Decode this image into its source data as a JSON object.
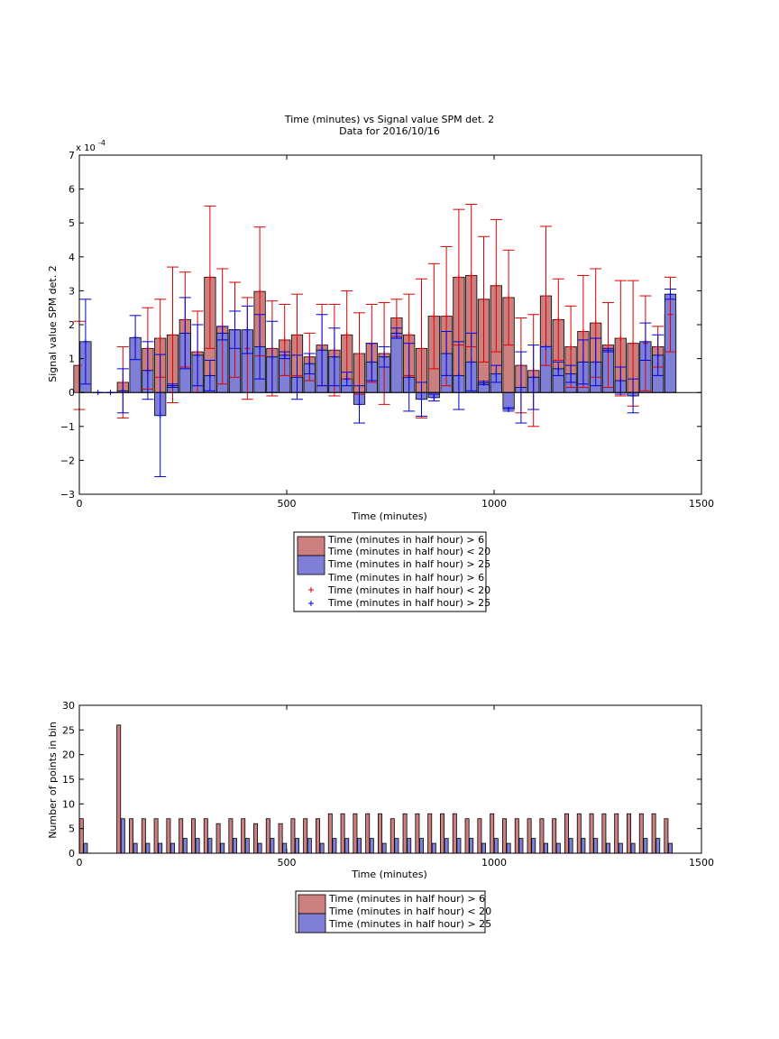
{
  "colors": {
    "red_bar": "#cc7f7f",
    "blue_bar": "#7f7fd7",
    "red_err": "#e00000",
    "blue_err": "#0000dd"
  },
  "chart_data": [
    {
      "type": "bar",
      "title": "Time (minutes) vs Signal value SPM det. 2",
      "subtitle": "Data for 2016/10/16",
      "xlabel": "Time (minutes)",
      "ylabel": "Signal value SPM det. 2",
      "y_exponent_label": "x 10",
      "y_exponent": "-4",
      "xlim": [
        0,
        1500
      ],
      "ylim": [
        -3,
        7
      ],
      "xticks": [
        "0",
        "500",
        "1000",
        "1500"
      ],
      "yticks": [
        "−3",
        "−2",
        "−1",
        "0",
        "1",
        "2",
        "3",
        "4",
        "5",
        "6",
        "7"
      ],
      "bar_width_minutes": 27,
      "legend": [
        "Time (minutes in half hour) > 6",
        "Time (minutes in half hour) < 20",
        "Time (minutes in half hour) > 25",
        "Time (minutes in half hour) > 6",
        "Time (minutes in half hour) < 20",
        "Time (minutes in half hour) > 25"
      ],
      "legend_location": "below the axes",
      "red_series": [
        {
          "x": 0,
          "v": 0.8,
          "err": 1.3
        },
        {
          "x": 105,
          "v": 0.3,
          "err": 1.05
        },
        {
          "x": 165,
          "v": 1.3,
          "err": 1.2
        },
        {
          "x": 195,
          "v": 1.6,
          "err": 1.15
        },
        {
          "x": 225,
          "v": 1.7,
          "err": 2.0
        },
        {
          "x": 255,
          "v": 2.15,
          "err": 1.4
        },
        {
          "x": 285,
          "v": 1.2,
          "err": 1.2
        },
        {
          "x": 315,
          "v": 3.4,
          "err": 2.1
        },
        {
          "x": 345,
          "v": 1.95,
          "err": 1.7
        },
        {
          "x": 375,
          "v": 1.85,
          "err": 1.4
        },
        {
          "x": 405,
          "v": 1.3,
          "err": 1.5
        },
        {
          "x": 435,
          "v": 2.98,
          "err": 1.9
        },
        {
          "x": 465,
          "v": 1.3,
          "err": 1.4
        },
        {
          "x": 495,
          "v": 1.55,
          "err": 1.05
        },
        {
          "x": 525,
          "v": 1.7,
          "err": 1.2
        },
        {
          "x": 555,
          "v": 1.05,
          "err": 0.7
        },
        {
          "x": 585,
          "v": 1.4,
          "err": 1.2
        },
        {
          "x": 615,
          "v": 1.25,
          "err": 1.35
        },
        {
          "x": 645,
          "v": 1.7,
          "err": 1.3
        },
        {
          "x": 675,
          "v": 1.15,
          "err": 1.2
        },
        {
          "x": 705,
          "v": 1.45,
          "err": 1.15
        },
        {
          "x": 735,
          "v": 1.15,
          "err": 1.5
        },
        {
          "x": 765,
          "v": 2.2,
          "err": 0.55
        },
        {
          "x": 795,
          "v": 1.7,
          "err": 1.2
        },
        {
          "x": 825,
          "v": 1.3,
          "err": 2.05
        },
        {
          "x": 855,
          "v": 2.25,
          "err": 1.55
        },
        {
          "x": 885,
          "v": 2.25,
          "err": 2.05
        },
        {
          "x": 915,
          "v": 3.4,
          "err": 2.0
        },
        {
          "x": 945,
          "v": 3.45,
          "err": 2.1
        },
        {
          "x": 975,
          "v": 2.75,
          "err": 1.85
        },
        {
          "x": 1005,
          "v": 3.15,
          "err": 1.95
        },
        {
          "x": 1035,
          "v": 2.8,
          "err": 1.4
        },
        {
          "x": 1065,
          "v": 0.8,
          "err": 1.4
        },
        {
          "x": 1095,
          "v": 0.65,
          "err": 1.65
        },
        {
          "x": 1125,
          "v": 2.85,
          "err": 2.05
        },
        {
          "x": 1155,
          "v": 2.15,
          "err": 1.2
        },
        {
          "x": 1185,
          "v": 1.35,
          "err": 1.2
        },
        {
          "x": 1215,
          "v": 1.8,
          "err": 1.65
        },
        {
          "x": 1245,
          "v": 2.05,
          "err": 1.6
        },
        {
          "x": 1275,
          "v": 1.4,
          "err": 1.25
        },
        {
          "x": 1305,
          "v": 1.6,
          "err": 1.7
        },
        {
          "x": 1335,
          "v": 1.45,
          "err": 1.85
        },
        {
          "x": 1365,
          "v": 1.45,
          "err": 1.4
        },
        {
          "x": 1395,
          "v": 1.35,
          "err": 0.6
        },
        {
          "x": 1425,
          "v": 2.3,
          "err": 1.1
        }
      ],
      "blue_series": [
        {
          "x": 15,
          "v": 1.5,
          "err": 1.25
        },
        {
          "x": 45,
          "v": 0.0,
          "err": 0.0
        },
        {
          "x": 75,
          "v": 0.0,
          "err": 0.0
        },
        {
          "x": 105,
          "v": 0.05,
          "err": 0.65
        },
        {
          "x": 135,
          "v": 1.62,
          "err": 0.65
        },
        {
          "x": 165,
          "v": 0.65,
          "err": 0.85
        },
        {
          "x": 195,
          "v": -0.68,
          "err": 1.8
        },
        {
          "x": 225,
          "v": 0.2,
          "err": 0.05
        },
        {
          "x": 255,
          "v": 1.75,
          "err": 1.05
        },
        {
          "x": 285,
          "v": 1.1,
          "err": 0.9
        },
        {
          "x": 315,
          "v": 0.5,
          "err": 0.45
        },
        {
          "x": 345,
          "v": 1.75,
          "err": 0.2
        },
        {
          "x": 375,
          "v": 1.85,
          "err": 0.55
        },
        {
          "x": 405,
          "v": 1.85,
          "err": 0.7
        },
        {
          "x": 435,
          "v": 1.35,
          "err": 0.95
        },
        {
          "x": 465,
          "v": 1.05,
          "err": 1.05
        },
        {
          "x": 495,
          "v": 1.1,
          "err": 0.1
        },
        {
          "x": 525,
          "v": 0.45,
          "err": 0.65
        },
        {
          "x": 555,
          "v": 0.85,
          "err": 0.3
        },
        {
          "x": 585,
          "v": 1.25,
          "err": 1.05
        },
        {
          "x": 615,
          "v": 1.05,
          "err": 0.85
        },
        {
          "x": 645,
          "v": 0.4,
          "err": 0.2
        },
        {
          "x": 675,
          "v": -0.35,
          "err": 0.55
        },
        {
          "x": 705,
          "v": 0.9,
          "err": 0.55
        },
        {
          "x": 735,
          "v": 1.05,
          "err": 0.3
        },
        {
          "x": 765,
          "v": 1.75,
          "err": 0.15
        },
        {
          "x": 795,
          "v": 0.45,
          "err": 1.0
        },
        {
          "x": 825,
          "v": -0.2,
          "err": 0.5
        },
        {
          "x": 855,
          "v": -0.15,
          "err": 0.1
        },
        {
          "x": 885,
          "v": 1.15,
          "err": 0.65
        },
        {
          "x": 915,
          "v": 0.5,
          "err": 1.0
        },
        {
          "x": 945,
          "v": 0.9,
          "err": 0.85
        },
        {
          "x": 975,
          "v": 0.28,
          "err": 0.05
        },
        {
          "x": 1005,
          "v": 0.55,
          "err": 0.25
        },
        {
          "x": 1035,
          "v": -0.5,
          "err": 0.05
        },
        {
          "x": 1065,
          "v": 0.15,
          "err": 1.05
        },
        {
          "x": 1095,
          "v": 0.45,
          "err": 0.95
        },
        {
          "x": 1125,
          "v": 1.35,
          "err": 0.0
        },
        {
          "x": 1155,
          "v": 0.7,
          "err": 0.2
        },
        {
          "x": 1185,
          "v": 0.55,
          "err": 0.25
        },
        {
          "x": 1215,
          "v": 0.9,
          "err": 0.65
        },
        {
          "x": 1245,
          "v": 0.9,
          "err": 0.7
        },
        {
          "x": 1275,
          "v": 1.25,
          "err": 0.05
        },
        {
          "x": 1305,
          "v": 0.35,
          "err": 0.4
        },
        {
          "x": 1335,
          "v": -0.1,
          "err": 0.5
        },
        {
          "x": 1365,
          "v": 1.5,
          "err": 0.55
        },
        {
          "x": 1395,
          "v": 1.1,
          "err": 0.6
        },
        {
          "x": 1425,
          "v": 2.9,
          "err": 0.15
        }
      ]
    },
    {
      "type": "bar",
      "xlabel": "Time (minutes)",
      "ylabel": "Number of points in bin",
      "xlim": [
        0,
        1500
      ],
      "ylim": [
        0,
        30
      ],
      "xticks": [
        "0",
        "500",
        "1000",
        "1500"
      ],
      "yticks": [
        "0",
        "5",
        "10",
        "15",
        "20",
        "25",
        "30"
      ],
      "bar_width_minutes": 9,
      "legend": [
        "Time (minutes in half hour) > 6",
        "Time (minutes in half hour) < 20",
        "Time (minutes in half hour) > 25"
      ],
      "legend_location": "below the axes",
      "red_counts": [
        {
          "x": 5,
          "v": 7
        },
        {
          "x": 95,
          "v": 26
        },
        {
          "x": 125,
          "v": 7
        },
        {
          "x": 155,
          "v": 7
        },
        {
          "x": 185,
          "v": 7
        },
        {
          "x": 215,
          "v": 7
        },
        {
          "x": 245,
          "v": 7
        },
        {
          "x": 275,
          "v": 7
        },
        {
          "x": 305,
          "v": 7
        },
        {
          "x": 335,
          "v": 6
        },
        {
          "x": 365,
          "v": 7
        },
        {
          "x": 395,
          "v": 7
        },
        {
          "x": 425,
          "v": 6
        },
        {
          "x": 455,
          "v": 7
        },
        {
          "x": 485,
          "v": 6
        },
        {
          "x": 515,
          "v": 7
        },
        {
          "x": 545,
          "v": 7
        },
        {
          "x": 575,
          "v": 7
        },
        {
          "x": 605,
          "v": 8
        },
        {
          "x": 635,
          "v": 8
        },
        {
          "x": 665,
          "v": 8
        },
        {
          "x": 695,
          "v": 8
        },
        {
          "x": 725,
          "v": 8
        },
        {
          "x": 755,
          "v": 7
        },
        {
          "x": 785,
          "v": 8
        },
        {
          "x": 815,
          "v": 8
        },
        {
          "x": 845,
          "v": 8
        },
        {
          "x": 875,
          "v": 8
        },
        {
          "x": 905,
          "v": 8
        },
        {
          "x": 935,
          "v": 7
        },
        {
          "x": 965,
          "v": 7
        },
        {
          "x": 995,
          "v": 8
        },
        {
          "x": 1025,
          "v": 7
        },
        {
          "x": 1055,
          "v": 7
        },
        {
          "x": 1085,
          "v": 7
        },
        {
          "x": 1115,
          "v": 7
        },
        {
          "x": 1145,
          "v": 7
        },
        {
          "x": 1175,
          "v": 8
        },
        {
          "x": 1205,
          "v": 8
        },
        {
          "x": 1235,
          "v": 8
        },
        {
          "x": 1265,
          "v": 8
        },
        {
          "x": 1295,
          "v": 8
        },
        {
          "x": 1325,
          "v": 8
        },
        {
          "x": 1355,
          "v": 8
        },
        {
          "x": 1385,
          "v": 8
        },
        {
          "x": 1415,
          "v": 7
        }
      ],
      "blue_counts": [
        {
          "x": 15,
          "v": 2
        },
        {
          "x": 105,
          "v": 7
        },
        {
          "x": 135,
          "v": 2
        },
        {
          "x": 165,
          "v": 2
        },
        {
          "x": 195,
          "v": 2
        },
        {
          "x": 225,
          "v": 2
        },
        {
          "x": 255,
          "v": 3
        },
        {
          "x": 285,
          "v": 3
        },
        {
          "x": 315,
          "v": 3
        },
        {
          "x": 345,
          "v": 2
        },
        {
          "x": 375,
          "v": 3
        },
        {
          "x": 405,
          "v": 3
        },
        {
          "x": 435,
          "v": 2
        },
        {
          "x": 465,
          "v": 3
        },
        {
          "x": 495,
          "v": 2
        },
        {
          "x": 525,
          "v": 3
        },
        {
          "x": 555,
          "v": 3
        },
        {
          "x": 585,
          "v": 2
        },
        {
          "x": 615,
          "v": 3
        },
        {
          "x": 645,
          "v": 3
        },
        {
          "x": 675,
          "v": 3
        },
        {
          "x": 705,
          "v": 3
        },
        {
          "x": 735,
          "v": 2
        },
        {
          "x": 765,
          "v": 3
        },
        {
          "x": 795,
          "v": 3
        },
        {
          "x": 825,
          "v": 3
        },
        {
          "x": 855,
          "v": 2
        },
        {
          "x": 885,
          "v": 3
        },
        {
          "x": 915,
          "v": 3
        },
        {
          "x": 945,
          "v": 3
        },
        {
          "x": 975,
          "v": 2
        },
        {
          "x": 1005,
          "v": 3
        },
        {
          "x": 1035,
          "v": 2
        },
        {
          "x": 1065,
          "v": 3
        },
        {
          "x": 1095,
          "v": 3
        },
        {
          "x": 1125,
          "v": 2
        },
        {
          "x": 1155,
          "v": 2
        },
        {
          "x": 1185,
          "v": 3
        },
        {
          "x": 1215,
          "v": 3
        },
        {
          "x": 1245,
          "v": 3
        },
        {
          "x": 1275,
          "v": 2
        },
        {
          "x": 1305,
          "v": 2
        },
        {
          "x": 1335,
          "v": 2
        },
        {
          "x": 1365,
          "v": 3
        },
        {
          "x": 1395,
          "v": 3
        },
        {
          "x": 1425,
          "v": 2
        }
      ]
    }
  ]
}
